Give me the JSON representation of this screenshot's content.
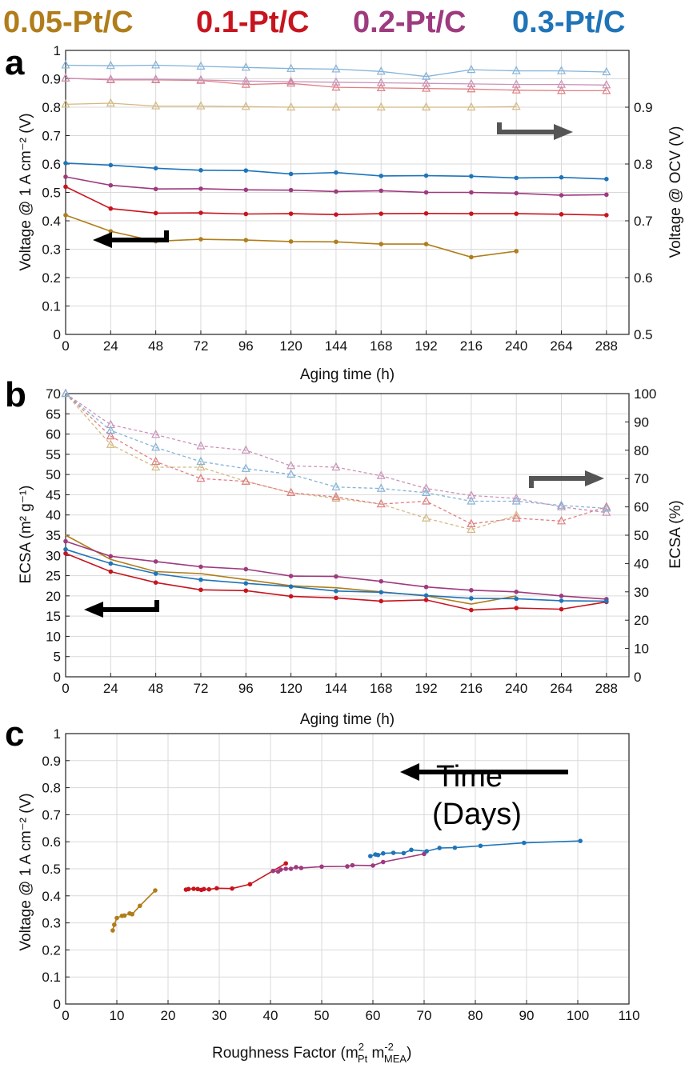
{
  "legend": [
    {
      "label": "0.05-Pt/C",
      "color": "#B07D1A"
    },
    {
      "label": "0.1-Pt/C",
      "color": "#C8141E"
    },
    {
      "label": "0.2-Pt/C",
      "color": "#9E3A7E"
    },
    {
      "label": "0.3-Pt/C",
      "color": "#1F74B8"
    }
  ],
  "chart_data": [
    {
      "panel": "a",
      "type": "line",
      "xlabel": "Aging time (h)",
      "ylabel": "Voltage @ 1 A cm⁻² (V)",
      "y2label": "Voltage @ OCV (V)",
      "xlim": [
        0,
        300
      ],
      "ylim": [
        0,
        1
      ],
      "y2lim": [
        0.5,
        1.0
      ],
      "xticks": [
        "0",
        "24",
        "48",
        "72",
        "96",
        "120",
        "144",
        "168",
        "192",
        "216",
        "240",
        "264",
        "288"
      ],
      "yticks": [
        "0",
        "0.1",
        "0.2",
        "0.3",
        "0.4",
        "0.5",
        "0.6",
        "0.7",
        "0.8",
        "0.9",
        "1"
      ],
      "y2ticks": [
        "0.5",
        "0.6",
        "0.7",
        "0.8",
        "0.9"
      ],
      "grid": true,
      "series": [
        {
          "name": "0.05-Pt/C",
          "axis": "left",
          "marker": "dot",
          "x": [
            0,
            24,
            48,
            72,
            96,
            120,
            144,
            168,
            192,
            216,
            240
          ],
          "y": [
            0.42,
            0.363,
            0.328,
            0.335,
            0.332,
            0.327,
            0.326,
            0.318,
            0.318,
            0.272,
            0.293
          ]
        },
        {
          "name": "0.1-Pt/C",
          "axis": "left",
          "marker": "dot",
          "x": [
            0,
            24,
            48,
            72,
            96,
            120,
            144,
            168,
            192,
            216,
            240,
            264,
            288
          ],
          "y": [
            0.52,
            0.443,
            0.427,
            0.428,
            0.424,
            0.425,
            0.422,
            0.425,
            0.426,
            0.425,
            0.425,
            0.423,
            0.42
          ]
        },
        {
          "name": "0.2-Pt/C",
          "axis": "left",
          "marker": "dot",
          "x": [
            0,
            24,
            48,
            72,
            96,
            120,
            144,
            168,
            192,
            216,
            240,
            264,
            288
          ],
          "y": [
            0.555,
            0.525,
            0.512,
            0.513,
            0.509,
            0.508,
            0.503,
            0.506,
            0.5,
            0.5,
            0.497,
            0.49,
            0.492
          ]
        },
        {
          "name": "0.3-Pt/C",
          "axis": "left",
          "marker": "dot",
          "x": [
            0,
            24,
            48,
            72,
            96,
            120,
            144,
            168,
            192,
            216,
            240,
            264,
            288
          ],
          "y": [
            0.603,
            0.596,
            0.585,
            0.578,
            0.577,
            0.565,
            0.57,
            0.558,
            0.559,
            0.557,
            0.551,
            0.553,
            0.547
          ]
        },
        {
          "name": "0.05-Pt/C",
          "axis": "right",
          "marker": "triangle",
          "x": [
            0,
            24,
            48,
            72,
            96,
            120,
            144,
            168,
            192,
            216,
            240
          ],
          "y": [
            0.905,
            0.907,
            0.902,
            0.902,
            0.901,
            0.9,
            0.9,
            0.9,
            0.9,
            0.9,
            0.901
          ]
        },
        {
          "name": "0.1-Pt/C",
          "axis": "right",
          "marker": "triangle",
          "x": [
            0,
            24,
            48,
            72,
            96,
            120,
            144,
            168,
            192,
            216,
            240,
            264,
            288
          ],
          "y": [
            0.951,
            0.948,
            0.948,
            0.947,
            0.94,
            0.942,
            0.935,
            0.934,
            0.933,
            0.932,
            0.93,
            0.929,
            0.929
          ]
        },
        {
          "name": "0.2-Pt/C",
          "axis": "right",
          "marker": "triangle",
          "x": [
            0,
            24,
            48,
            72,
            96,
            120,
            144,
            168,
            192,
            216,
            240,
            264,
            288
          ],
          "y": [
            0.951,
            0.949,
            0.949,
            0.948,
            0.946,
            0.945,
            0.944,
            0.943,
            0.942,
            0.941,
            0.94,
            0.94,
            0.939
          ]
        },
        {
          "name": "0.3-Pt/C",
          "axis": "right",
          "marker": "triangle",
          "x": [
            0,
            24,
            48,
            72,
            96,
            120,
            144,
            168,
            192,
            216,
            240,
            264,
            288
          ],
          "y": [
            0.974,
            0.973,
            0.974,
            0.972,
            0.97,
            0.968,
            0.967,
            0.963,
            0.954,
            0.966,
            0.964,
            0.964,
            0.962
          ]
        }
      ]
    },
    {
      "panel": "b",
      "type": "line",
      "xlabel": "Aging time (h)",
      "ylabel": "ECSA (m² g⁻¹)",
      "y2label": "ECSA (%)",
      "xlim": [
        0,
        300
      ],
      "ylim": [
        0,
        70
      ],
      "y2lim": [
        0,
        100
      ],
      "xticks": [
        "0",
        "24",
        "48",
        "72",
        "96",
        "120",
        "144",
        "168",
        "192",
        "216",
        "240",
        "264",
        "288"
      ],
      "yticks": [
        "0",
        "5",
        "10",
        "15",
        "20",
        "25",
        "30",
        "35",
        "40",
        "45",
        "50",
        "55",
        "60",
        "65",
        "70"
      ],
      "y2ticks": [
        "0",
        "10",
        "20",
        "30",
        "40",
        "50",
        "60",
        "70",
        "80",
        "90",
        "100"
      ],
      "grid": true,
      "series": [
        {
          "name": "0.05-Pt/C",
          "axis": "left",
          "marker": "none",
          "x": [
            0,
            24,
            48,
            72,
            96,
            120,
            144,
            168,
            192,
            216,
            240
          ],
          "y": [
            35,
            29,
            26,
            25.5,
            24,
            22.5,
            22,
            21,
            20,
            18,
            20
          ]
        },
        {
          "name": "0.1-Pt/C",
          "axis": "left",
          "marker": "dot",
          "x": [
            0,
            24,
            48,
            72,
            96,
            120,
            144,
            168,
            192,
            216,
            240,
            264,
            288
          ],
          "y": [
            30.5,
            26,
            23.3,
            21.5,
            21.3,
            19.9,
            19.5,
            18.7,
            19,
            16.5,
            17,
            16.7,
            18.5
          ]
        },
        {
          "name": "0.2-Pt/C",
          "axis": "left",
          "marker": "dot",
          "x": [
            0,
            24,
            48,
            72,
            96,
            120,
            144,
            168,
            192,
            216,
            240,
            264,
            288
          ],
          "y": [
            33.5,
            29.8,
            28.5,
            27.2,
            26.6,
            24.9,
            24.8,
            23.6,
            22.2,
            21.4,
            21,
            20,
            19.2
          ]
        },
        {
          "name": "0.3-Pt/C",
          "axis": "left",
          "marker": "dot",
          "x": [
            0,
            24,
            48,
            72,
            96,
            120,
            144,
            168,
            192,
            216,
            240,
            264,
            288
          ],
          "y": [
            31.5,
            28,
            25.5,
            24,
            23.1,
            22.3,
            21.2,
            20.9,
            20.1,
            19.4,
            19.3,
            18.8,
            18.7
          ]
        },
        {
          "name": "0.05-Pt/C",
          "axis": "right",
          "marker": "triangle",
          "x": [
            0,
            24,
            48,
            72,
            96,
            120,
            144,
            168,
            192,
            216,
            240
          ],
          "y": [
            100,
            82,
            74,
            74,
            69,
            65,
            63,
            61,
            56,
            52,
            57
          ]
        },
        {
          "name": "0.1-Pt/C",
          "axis": "right",
          "marker": "triangle",
          "x": [
            0,
            24,
            48,
            72,
            96,
            120,
            144,
            168,
            192,
            216,
            240,
            264,
            288
          ],
          "y": [
            100,
            85,
            76,
            70,
            69,
            65,
            63.5,
            61,
            62,
            54,
            56,
            55,
            60
          ]
        },
        {
          "name": "0.2-Pt/C",
          "axis": "right",
          "marker": "triangle",
          "x": [
            0,
            24,
            48,
            72,
            96,
            120,
            144,
            168,
            192,
            216,
            240,
            264,
            288
          ],
          "y": [
            100,
            89,
            85.5,
            81.5,
            80,
            74.5,
            74,
            71,
            66.5,
            64,
            63,
            60,
            58
          ]
        },
        {
          "name": "0.3-Pt/C",
          "axis": "right",
          "marker": "triangle",
          "x": [
            0,
            24,
            48,
            72,
            96,
            120,
            144,
            168,
            192,
            216,
            240,
            264,
            288
          ],
          "y": [
            100,
            87,
            81,
            76,
            73.5,
            71.5,
            67,
            66.5,
            65,
            62,
            62,
            60.5,
            59.5
          ]
        }
      ]
    },
    {
      "panel": "c",
      "type": "scatter",
      "xlabel": "Roughness Factor (m",
      "xlim": [
        0,
        110
      ],
      "ylim": [
        0,
        1
      ],
      "xticks": [
        "0",
        "10",
        "20",
        "30",
        "40",
        "50",
        "60",
        "70",
        "80",
        "90",
        "100",
        "110"
      ],
      "yticks": [
        "0",
        "0.1",
        "0.2",
        "0.3",
        "0.4",
        "0.5",
        "0.6",
        "0.7",
        "0.8",
        "0.9",
        "1"
      ],
      "grid": true,
      "series": [
        {
          "name": "0.05-Pt/C",
          "x": [
            17.5,
            14.5,
            13,
            12.5,
            11.5,
            11,
            10,
            9.5,
            9.2
          ],
          "y": [
            0.42,
            0.363,
            0.332,
            0.335,
            0.327,
            0.326,
            0.318,
            0.293,
            0.272
          ]
        },
        {
          "name": "0.1-Pt/C",
          "x": [
            43,
            36,
            32.5,
            29.5,
            28,
            27,
            26.5,
            25.8,
            25,
            24,
            23.5
          ],
          "y": [
            0.52,
            0.443,
            0.427,
            0.428,
            0.424,
            0.425,
            0.422,
            0.425,
            0.426,
            0.425,
            0.423
          ]
        },
        {
          "name": "0.2-Pt/C",
          "x": [
            70,
            62,
            60,
            56,
            55,
            50,
            46,
            45,
            44,
            43,
            42,
            41.5,
            40.5
          ],
          "y": [
            0.555,
            0.525,
            0.512,
            0.513,
            0.509,
            0.508,
            0.503,
            0.506,
            0.5,
            0.5,
            0.497,
            0.49,
            0.492
          ]
        },
        {
          "name": "0.3-Pt/C",
          "x": [
            100.5,
            89.5,
            81,
            76,
            73,
            70.5,
            67.5,
            66,
            64,
            62,
            61,
            60.5,
            59.5
          ],
          "y": [
            0.603,
            0.596,
            0.585,
            0.578,
            0.577,
            0.565,
            0.57,
            0.558,
            0.559,
            0.557,
            0.551,
            0.553,
            0.547
          ]
        }
      ]
    }
  ]
}
